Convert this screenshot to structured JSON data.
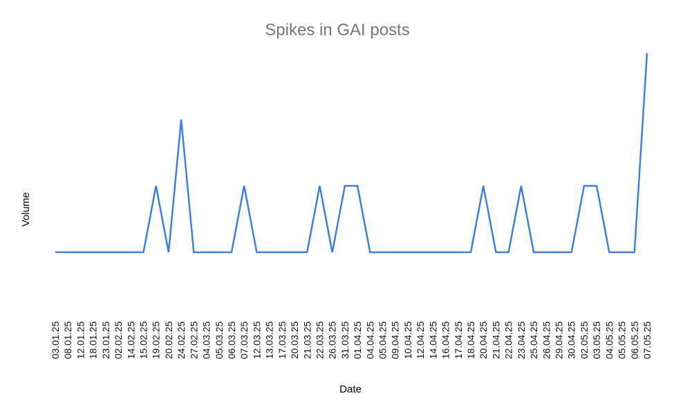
{
  "chart_data": {
    "type": "line",
    "title": "Spikes in GAI posts",
    "xlabel": "Date",
    "ylabel": "Volume",
    "grid": false,
    "legend": "none",
    "ylim": [
      0,
      4
    ],
    "line_color": "#3d7fe0",
    "categories": [
      "03.01.25",
      "08.01.25",
      "12.01.25",
      "18.01.25",
      "23.01.25",
      "02.02.25",
      "14.02.25",
      "15.02.25",
      "19.02.25",
      "20.02.25",
      "24.02.25",
      "27.02.25",
      "04.03.25",
      "05.03.25",
      "06.03.25",
      "07.03.25",
      "12.03.25",
      "13.03.25",
      "17.03.25",
      "20.03.25",
      "21.03.25",
      "22.03.25",
      "26.03.25",
      "31.03.25",
      "01.04.25",
      "04.04.25",
      "05.04.25",
      "09.04.25",
      "10.04.25",
      "12.04.25",
      "14.04.25",
      "16.04.25",
      "17.04.25",
      "18.04.25",
      "20.04.25",
      "21.04.25",
      "22.04.25",
      "23.04.25",
      "25.04.25",
      "26.04.25",
      "29.04.25",
      "30.04.25",
      "02.05.25",
      "03.05.25",
      "04.05.25",
      "05.05.25",
      "06.05.25",
      "07.05.25"
    ],
    "values": [
      1,
      1,
      1,
      1,
      1,
      1,
      1,
      1,
      2,
      1,
      3,
      1,
      1,
      1,
      1,
      2,
      1,
      1,
      1,
      1,
      1,
      2,
      1,
      2,
      2,
      1,
      1,
      1,
      1,
      1,
      1,
      1,
      1,
      1,
      2,
      1,
      1,
      2,
      1,
      1,
      1,
      1,
      2,
      2,
      1,
      1,
      1,
      4
    ]
  }
}
